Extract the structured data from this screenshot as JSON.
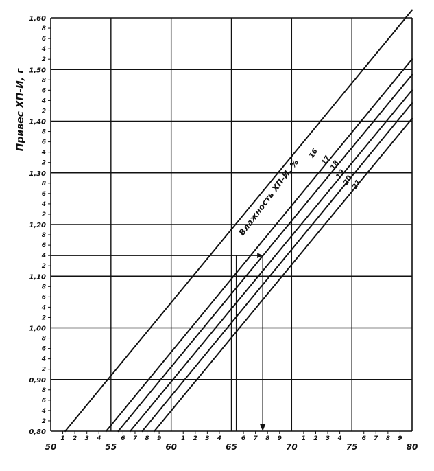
{
  "chart_data": {
    "type": "line",
    "title": "",
    "ylabel": "Привес ХП-И, г",
    "curve_family_label": "Влажность ХП-И, %",
    "xlim": [
      50,
      80
    ],
    "ylim": [
      0.8,
      1.6
    ],
    "x_major_ticks": [
      "50",
      "55",
      "60",
      "65",
      "70",
      "75",
      "80"
    ],
    "x_minor_tick_labels": [
      "1",
      "2",
      "3",
      "4",
      "6",
      "7",
      "8",
      "9"
    ],
    "y_major_ticks": [
      {
        "value": 0.8,
        "label": "0,80"
      },
      {
        "value": 0.9,
        "label": "0,90"
      },
      {
        "value": 1.0,
        "label": "1,00"
      },
      {
        "value": 1.1,
        "label": "1,10"
      },
      {
        "value": 1.2,
        "label": "1,20"
      },
      {
        "value": 1.3,
        "label": "1,30"
      },
      {
        "value": 1.4,
        "label": "1,40"
      },
      {
        "value": 1.5,
        "label": "1,50"
      },
      {
        "value": 1.6,
        "label": "1,60"
      }
    ],
    "y_minor_tick_labels": [
      "2",
      "4",
      "6",
      "8"
    ],
    "grid": true,
    "series": [
      {
        "name": "16",
        "x": [
          51.2,
          80.0
        ],
        "y": [
          0.8,
          1.615
        ]
      },
      {
        "name": "17",
        "x": [
          54.6,
          80.0
        ],
        "y": [
          0.8,
          1.52
        ]
      },
      {
        "name": "18",
        "x": [
          55.6,
          80.0
        ],
        "y": [
          0.8,
          1.49
        ]
      },
      {
        "name": "19",
        "x": [
          56.6,
          80.0
        ],
        "y": [
          0.8,
          1.46
        ]
      },
      {
        "name": "20",
        "x": [
          57.6,
          80.0
        ],
        "y": [
          0.8,
          1.435
        ]
      },
      {
        "name": "21",
        "x": [
          58.6,
          80.0
        ],
        "y": [
          0.8,
          1.405
        ]
      }
    ],
    "annotation": {
      "type": "reading-path",
      "x": 67.6,
      "y": 1.14,
      "start_x": 65.4
    }
  }
}
